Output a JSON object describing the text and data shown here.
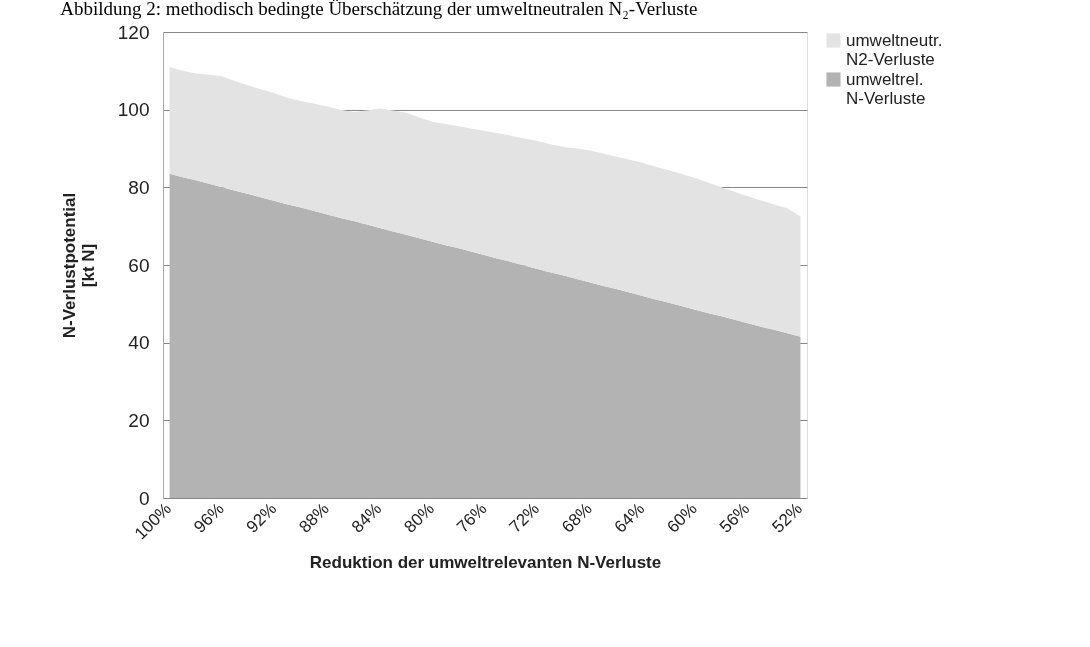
{
  "chart_data": {
    "type": "area",
    "title": "Abbildung 2: methodisch bedingte Überschätzung der umweltneutralen N₂-Verluste",
    "xlabel": "Reduktion der umweltrelevanten N-Verluste",
    "ylabel": "N-Verlustpotential\n[kt N]",
    "categories": [
      "100%",
      null,
      null,
      null,
      "96%",
      null,
      null,
      null,
      "92%",
      null,
      null,
      null,
      "88%",
      null,
      null,
      null,
      "84%",
      null,
      null,
      null,
      "80%",
      null,
      null,
      null,
      "76%",
      null,
      null,
      null,
      "72%",
      null,
      null,
      null,
      "68%",
      null,
      null,
      null,
      "64%",
      null,
      null,
      null,
      "60%",
      null,
      null,
      null,
      "56%",
      null,
      null,
      null,
      "52%"
    ],
    "stacked": true,
    "series": [
      {
        "name": "umweltrel. N-Verluste",
        "color": "#b3b3b3",
        "values": [
          83.5,
          82.6,
          81.8,
          80.9,
          80,
          79.1,
          78.3,
          77.4,
          76.5,
          75.6,
          74.8,
          73.9,
          73,
          72.1,
          71.3,
          70.4,
          69.5,
          68.6,
          67.8,
          66.9,
          66,
          65.1,
          64.3,
          63.4,
          62.5,
          61.6,
          60.8,
          59.9,
          59,
          58.1,
          57.3,
          56.4,
          55.5,
          54.6,
          53.8,
          52.9,
          52,
          51.1,
          50.3,
          49.4,
          48.5,
          47.6,
          46.8,
          45.9,
          45,
          44.1,
          43.3,
          42.4,
          41.5
        ]
      },
      {
        "name": "umweltneutr. N2-Verluste",
        "color": "#e3e3e3",
        "values": [
          27.5,
          27.4,
          27.5,
          28.1,
          28.6,
          28.2,
          27.9,
          27.8,
          27.7,
          27.4,
          27.4,
          27.6,
          27.8,
          27.9,
          28.1,
          29.4,
          30.8,
          31.2,
          31.4,
          31.1,
          30.9,
          31.2,
          31.4,
          31.7,
          32,
          32.3,
          32.5,
          32.7,
          32.9,
          33,
          33.1,
          33.6,
          34,
          34.1,
          34.1,
          34.2,
          34.3,
          34.2,
          34.1,
          34,
          33.9,
          33.6,
          33.2,
          32.9,
          32.7,
          32.5,
          32.3,
          32.2,
          31
        ]
      }
    ],
    "ylim": [
      0,
      120
    ],
    "yticks": [
      0,
      20,
      40,
      60,
      80,
      100,
      120
    ],
    "grid": "y",
    "legend": "right"
  }
}
